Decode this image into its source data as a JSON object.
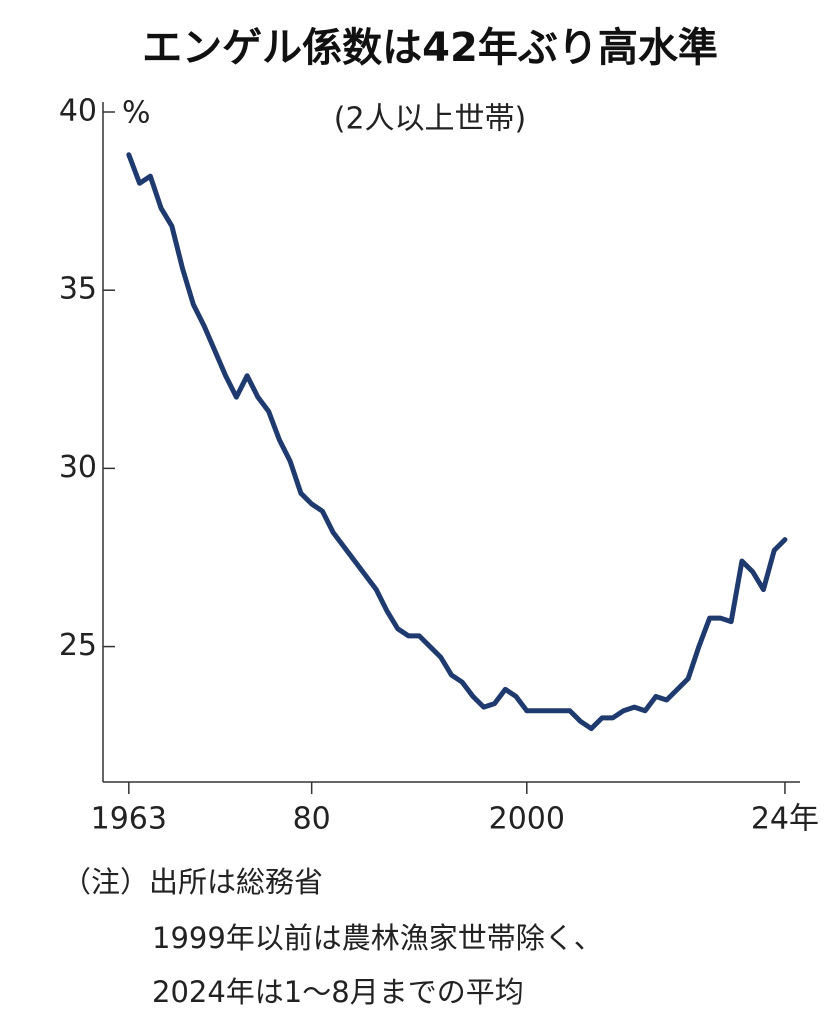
{
  "chart_data": {
    "type": "line",
    "title": "エンゲル係数は42年ぶり高水準",
    "subtitle": "(2人以上世帯)",
    "y_unit": "%",
    "notes": [
      "（注）出所は総務省",
      "1999年以前は農林漁家世帯除く、",
      "2024年は1～8月までの平均"
    ],
    "x": [
      1963,
      1964,
      1965,
      1966,
      1967,
      1968,
      1969,
      1970,
      1971,
      1972,
      1973,
      1974,
      1975,
      1976,
      1977,
      1978,
      1979,
      1980,
      1981,
      1982,
      1983,
      1984,
      1985,
      1986,
      1987,
      1988,
      1989,
      1990,
      1991,
      1992,
      1993,
      1994,
      1995,
      1996,
      1997,
      1998,
      1999,
      2000,
      2001,
      2002,
      2003,
      2004,
      2005,
      2006,
      2007,
      2008,
      2009,
      2010,
      2011,
      2012,
      2013,
      2014,
      2015,
      2016,
      2017,
      2018,
      2019,
      2020,
      2021,
      2022,
      2023,
      2024
    ],
    "series": [
      {
        "color": "#1f3a6e",
        "values": [
          38.8,
          38.0,
          38.2,
          37.3,
          36.8,
          35.6,
          34.6,
          34.0,
          33.3,
          32.6,
          32.0,
          32.6,
          32.0,
          31.6,
          30.8,
          30.2,
          29.3,
          29.0,
          28.8,
          28.2,
          27.8,
          27.4,
          27.0,
          26.6,
          26.0,
          25.5,
          25.3,
          25.3,
          25.0,
          24.7,
          24.2,
          24.0,
          23.6,
          23.3,
          23.4,
          23.8,
          23.6,
          23.2,
          23.2,
          23.2,
          23.2,
          23.2,
          22.9,
          22.7,
          23.0,
          23.0,
          23.2,
          23.3,
          23.2,
          23.6,
          23.5,
          23.8,
          24.1,
          25.0,
          25.8,
          25.8,
          25.7,
          27.4,
          27.1,
          26.6,
          27.7,
          28.0
        ]
      }
    ],
    "xlim": [
      1960.6,
      2025.4
    ],
    "xticks": [
      1963,
      {
        "value": 1980,
        "label": "80"
      },
      2000,
      {
        "value": 2024,
        "label": "24年"
      }
    ],
    "ylim": [
      21.2,
      40
    ],
    "yticks": [
      25,
      30,
      35,
      40
    ]
  }
}
